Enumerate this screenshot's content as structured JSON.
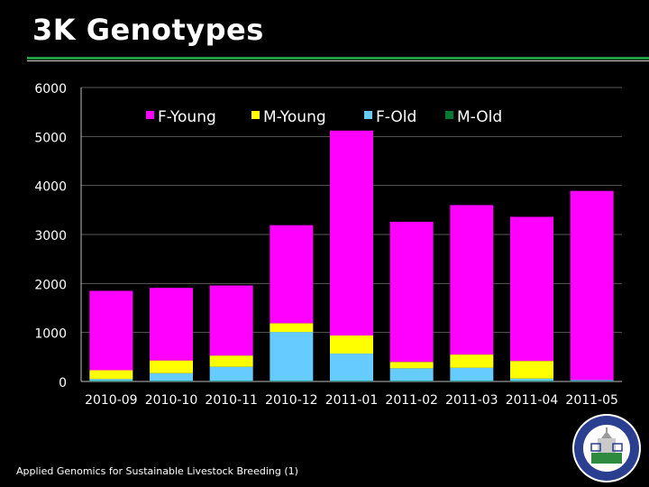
{
  "slide": {
    "title": "3K Genotypes",
    "footer": "Applied Genomics for Sustainable Livestock Breeding (1)"
  },
  "chart_data": {
    "type": "bar",
    "stacked": true,
    "categories": [
      "2010-09",
      "2010-10",
      "2010-11",
      "2010-12",
      "2011-01",
      "2011-02",
      "2011-03",
      "2011-04",
      "2011-05"
    ],
    "series": [
      {
        "name": "F-Young",
        "color": "#ff00ff",
        "values": [
          1620,
          1480,
          1430,
          2000,
          4180,
          2860,
          3050,
          2940,
          3860
        ]
      },
      {
        "name": "M-Young",
        "color": "#ffff00",
        "values": [
          180,
          260,
          230,
          180,
          370,
          130,
          270,
          360,
          0
        ]
      },
      {
        "name": "F-Old",
        "color": "#66ccff",
        "values": [
          40,
          160,
          290,
          1000,
          560,
          260,
          270,
          50,
          20
        ]
      },
      {
        "name": "M-Old",
        "color": "#007a33",
        "values": [
          10,
          10,
          10,
          10,
          10,
          10,
          10,
          10,
          10
        ]
      }
    ],
    "ylim": [
      0,
      6000
    ],
    "yticks": [
      0,
      1000,
      2000,
      3000,
      4000,
      5000,
      6000
    ],
    "grid": true,
    "legend": "top",
    "xlabel": "",
    "ylabel": ""
  }
}
